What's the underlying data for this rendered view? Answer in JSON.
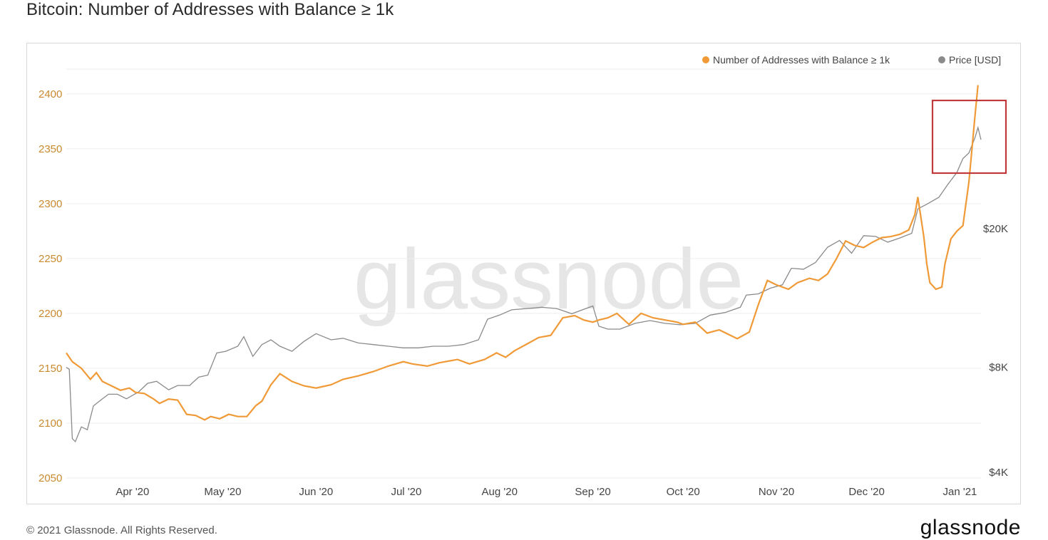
{
  "page": {
    "title": "Bitcoin: Number of Addresses with Balance ≥ 1k",
    "footer": "© 2021 Glassnode. All Rights Reserved.",
    "brand": "glassnode",
    "watermark": "glassnode"
  },
  "colors": {
    "addresses": "#f09a37",
    "price": "#8a8a8a",
    "highlight": "#c0393b",
    "grid": "#ededed"
  },
  "chart_data": {
    "type": "line",
    "title": "Bitcoin: Number of Addresses with Balance ≥ 1k",
    "legend_placement": "top-right",
    "grid": true,
    "x_ticks": [
      "Apr '20",
      "May '20",
      "Jun '20",
      "Jul '20",
      "Aug '20",
      "Sep '20",
      "Oct '20",
      "Nov '20",
      "Dec '20",
      "Jan '21"
    ],
    "x_range": [
      "2020-03-10",
      "2021-01-08"
    ],
    "left_axis": {
      "ticks": [
        "2050",
        "2100",
        "2150",
        "2200",
        "2250",
        "2300",
        "2350",
        "2400"
      ],
      "ylim": [
        2050,
        2420
      ],
      "scale": "linear"
    },
    "right_axis": {
      "ticks": [
        "$4K",
        "$8K",
        "$20K"
      ],
      "tick_values": [
        4000,
        8000,
        20000
      ],
      "scale": "log"
    },
    "series": [
      {
        "name": "Number of Addresses with Balance ≥ 1k",
        "axis": "left",
        "x": [
          "2020-03-10",
          "2020-03-12",
          "2020-03-15",
          "2020-03-18",
          "2020-03-20",
          "2020-03-22",
          "2020-03-25",
          "2020-03-28",
          "2020-03-31",
          "2020-04-02",
          "2020-04-05",
          "2020-04-08",
          "2020-04-10",
          "2020-04-13",
          "2020-04-16",
          "2020-04-19",
          "2020-04-22",
          "2020-04-25",
          "2020-04-27",
          "2020-04-30",
          "2020-05-03",
          "2020-05-06",
          "2020-05-09",
          "2020-05-12",
          "2020-05-14",
          "2020-05-17",
          "2020-05-20",
          "2020-05-24",
          "2020-05-28",
          "2020-06-01",
          "2020-06-06",
          "2020-06-10",
          "2020-06-15",
          "2020-06-20",
          "2020-06-25",
          "2020-06-30",
          "2020-07-03",
          "2020-07-08",
          "2020-07-12",
          "2020-07-18",
          "2020-07-22",
          "2020-07-27",
          "2020-07-31",
          "2020-08-03",
          "2020-08-06",
          "2020-08-10",
          "2020-08-14",
          "2020-08-18",
          "2020-08-22",
          "2020-08-26",
          "2020-08-29",
          "2020-09-01",
          "2020-09-03",
          "2020-09-06",
          "2020-09-09",
          "2020-09-13",
          "2020-09-17",
          "2020-09-21",
          "2020-09-25",
          "2020-09-29",
          "2020-10-01",
          "2020-10-05",
          "2020-10-09",
          "2020-10-13",
          "2020-10-16",
          "2020-10-19",
          "2020-10-21",
          "2020-10-23",
          "2020-10-26",
          "2020-10-29",
          "2020-11-01",
          "2020-11-05",
          "2020-11-08",
          "2020-11-12",
          "2020-11-15",
          "2020-11-18",
          "2020-11-21",
          "2020-11-24",
          "2020-11-27",
          "2020-11-30",
          "2020-12-03",
          "2020-12-06",
          "2020-12-09",
          "2020-12-12",
          "2020-12-15",
          "2020-12-17",
          "2020-12-18",
          "2020-12-19",
          "2020-12-20",
          "2020-12-21",
          "2020-12-22",
          "2020-12-24",
          "2020-12-26",
          "2020-12-27",
          "2020-12-29",
          "2020-12-31",
          "2021-01-02",
          "2021-01-04",
          "2021-01-06",
          "2021-01-07"
        ],
        "values": [
          2164,
          2156,
          2150,
          2140,
          2146,
          2138,
          2134,
          2130,
          2132,
          2128,
          2127,
          2122,
          2118,
          2122,
          2121,
          2108,
          2107,
          2103,
          2106,
          2104,
          2108,
          2106,
          2106,
          2116,
          2120,
          2135,
          2145,
          2138,
          2134,
          2132,
          2135,
          2140,
          2143,
          2147,
          2152,
          2156,
          2154,
          2152,
          2155,
          2158,
          2154,
          2158,
          2164,
          2160,
          2166,
          2172,
          2178,
          2180,
          2196,
          2198,
          2194,
          2192,
          2194,
          2196,
          2200,
          2190,
          2200,
          2196,
          2194,
          2192,
          2190,
          2192,
          2182,
          2185,
          2181,
          2177,
          2180,
          2183,
          2208,
          2230,
          2226,
          2222,
          2228,
          2232,
          2230,
          2236,
          2250,
          2266,
          2262,
          2260,
          2265,
          2269,
          2270,
          2272,
          2276,
          2290,
          2306,
          2288,
          2270,
          2245,
          2228,
          2222,
          2224,
          2245,
          2268,
          2275,
          2280,
          2320,
          2380,
          2408
        ]
      },
      {
        "name": "Price [USD]",
        "axis": "right",
        "x": [
          "2020-03-10",
          "2020-03-11",
          "2020-03-12",
          "2020-03-13",
          "2020-03-15",
          "2020-03-17",
          "2020-03-19",
          "2020-03-21",
          "2020-03-24",
          "2020-03-27",
          "2020-03-30",
          "2020-04-03",
          "2020-04-06",
          "2020-04-09",
          "2020-04-13",
          "2020-04-16",
          "2020-04-20",
          "2020-04-23",
          "2020-04-26",
          "2020-04-29",
          "2020-05-02",
          "2020-05-06",
          "2020-05-08",
          "2020-05-11",
          "2020-05-14",
          "2020-05-17",
          "2020-05-20",
          "2020-05-24",
          "2020-05-28",
          "2020-06-01",
          "2020-06-06",
          "2020-06-10",
          "2020-06-15",
          "2020-06-20",
          "2020-06-25",
          "2020-06-30",
          "2020-07-05",
          "2020-07-10",
          "2020-07-15",
          "2020-07-20",
          "2020-07-25",
          "2020-07-28",
          "2020-08-01",
          "2020-08-05",
          "2020-08-10",
          "2020-08-15",
          "2020-08-20",
          "2020-08-25",
          "2020-09-01",
          "2020-09-03",
          "2020-09-06",
          "2020-09-10",
          "2020-09-15",
          "2020-09-20",
          "2020-09-25",
          "2020-09-30",
          "2020-10-05",
          "2020-10-10",
          "2020-10-15",
          "2020-10-20",
          "2020-10-22",
          "2020-10-26",
          "2020-10-30",
          "2020-11-03",
          "2020-11-06",
          "2020-11-10",
          "2020-11-14",
          "2020-11-18",
          "2020-11-22",
          "2020-11-26",
          "2020-11-30",
          "2020-12-04",
          "2020-12-08",
          "2020-12-12",
          "2020-12-16",
          "2020-12-18",
          "2020-12-21",
          "2020-12-25",
          "2020-12-28",
          "2020-12-31",
          "2021-01-02",
          "2021-01-04",
          "2021-01-06",
          "2021-01-07",
          "2021-01-08"
        ],
        "values": [
          8000,
          7900,
          5000,
          4900,
          5400,
          5300,
          6200,
          6400,
          6700,
          6700,
          6500,
          6800,
          7200,
          7300,
          6900,
          7100,
          7100,
          7500,
          7600,
          8800,
          8900,
          9200,
          9800,
          8600,
          9300,
          9600,
          9200,
          8900,
          9500,
          10000,
          9600,
          9700,
          9400,
          9300,
          9200,
          9100,
          9100,
          9200,
          9200,
          9300,
          9600,
          11000,
          11300,
          11700,
          11800,
          11900,
          11800,
          11400,
          12000,
          10500,
          10300,
          10300,
          10700,
          10900,
          10700,
          10600,
          10700,
          11300,
          11500,
          11900,
          12900,
          13000,
          13500,
          13800,
          15400,
          15300,
          16000,
          17700,
          18500,
          17000,
          19100,
          19000,
          18300,
          18800,
          19400,
          22800,
          23500,
          24600,
          26800,
          29000,
          31800,
          33000,
          36500,
          39000,
          36000
        ]
      }
    ]
  }
}
